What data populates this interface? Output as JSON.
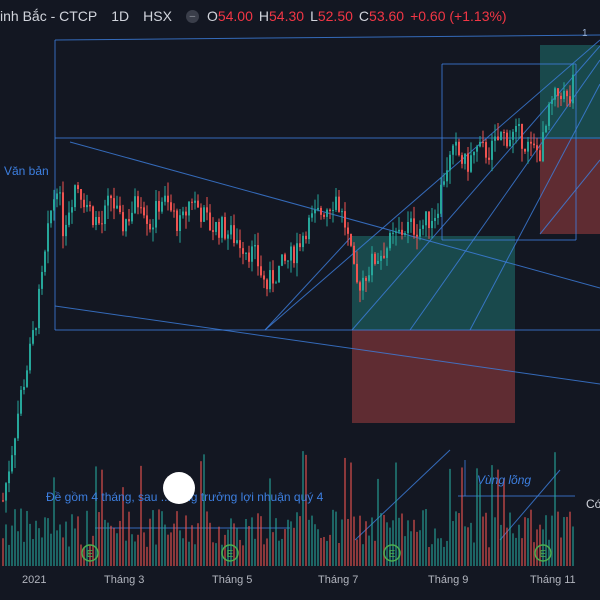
{
  "header": {
    "symbol": "inh Bắc - CTCP",
    "interval": "1D",
    "exchange": "HSX",
    "open_label": "O",
    "open": "54.00",
    "high_label": "H",
    "high": "54.30",
    "low_label": "L",
    "low": "52.50",
    "close_label": "C",
    "close": "53.60",
    "change": "+0.60 (+1.13%)"
  },
  "annotations": {
    "text_left": "Văn bản",
    "note": "Đề gồm 4 tháng, sau ... tăng trưởng lợi nhuận quý 4",
    "zone": "Vùng lõng",
    "marker_one": "1",
    "edge_text": "Có"
  },
  "colors": {
    "background": "#131722",
    "up": "#26a69a",
    "down": "#ef5350",
    "line": "#3d7fe0",
    "text": "#d1d4dc"
  },
  "chart_data": {
    "type": "candlestick",
    "x_ticks": [
      "2021",
      "Tháng 3",
      "Tháng 5",
      "Tháng 7",
      "Tháng 9",
      "Tháng 11"
    ],
    "grid": false,
    "event_markers": [
      "E",
      "E",
      "E",
      "E"
    ],
    "price_path": [
      [
        2,
        28
      ],
      [
        10,
        31
      ],
      [
        20,
        35
      ],
      [
        30,
        38
      ],
      [
        40,
        42
      ],
      [
        50,
        47
      ],
      [
        56,
        49
      ],
      [
        62,
        46
      ],
      [
        75,
        49
      ],
      [
        90,
        47
      ],
      [
        100,
        46
      ],
      [
        110,
        48
      ],
      [
        120,
        46
      ],
      [
        130,
        47
      ],
      [
        140,
        48
      ],
      [
        150,
        46
      ],
      [
        160,
        48
      ],
      [
        170,
        47
      ],
      [
        180,
        46
      ],
      [
        190,
        48
      ],
      [
        200,
        47
      ],
      [
        210,
        46
      ],
      [
        220,
        46
      ],
      [
        240,
        45
      ],
      [
        255,
        44
      ],
      [
        265,
        42
      ],
      [
        275,
        43
      ],
      [
        290,
        44
      ],
      [
        305,
        46
      ],
      [
        320,
        47
      ],
      [
        335,
        48
      ],
      [
        345,
        46
      ],
      [
        355,
        42
      ],
      [
        365,
        43
      ],
      [
        375,
        44
      ],
      [
        390,
        45
      ],
      [
        405,
        46
      ],
      [
        420,
        46
      ],
      [
        435,
        47
      ],
      [
        445,
        50
      ],
      [
        455,
        51
      ],
      [
        465,
        50
      ],
      [
        475,
        51
      ],
      [
        490,
        51
      ],
      [
        500,
        52
      ],
      [
        510,
        52
      ],
      [
        520,
        52
      ],
      [
        530,
        51
      ],
      [
        540,
        51
      ],
      [
        550,
        54
      ],
      [
        560,
        55
      ],
      [
        568,
        54
      ],
      [
        574,
        56
      ]
    ]
  }
}
